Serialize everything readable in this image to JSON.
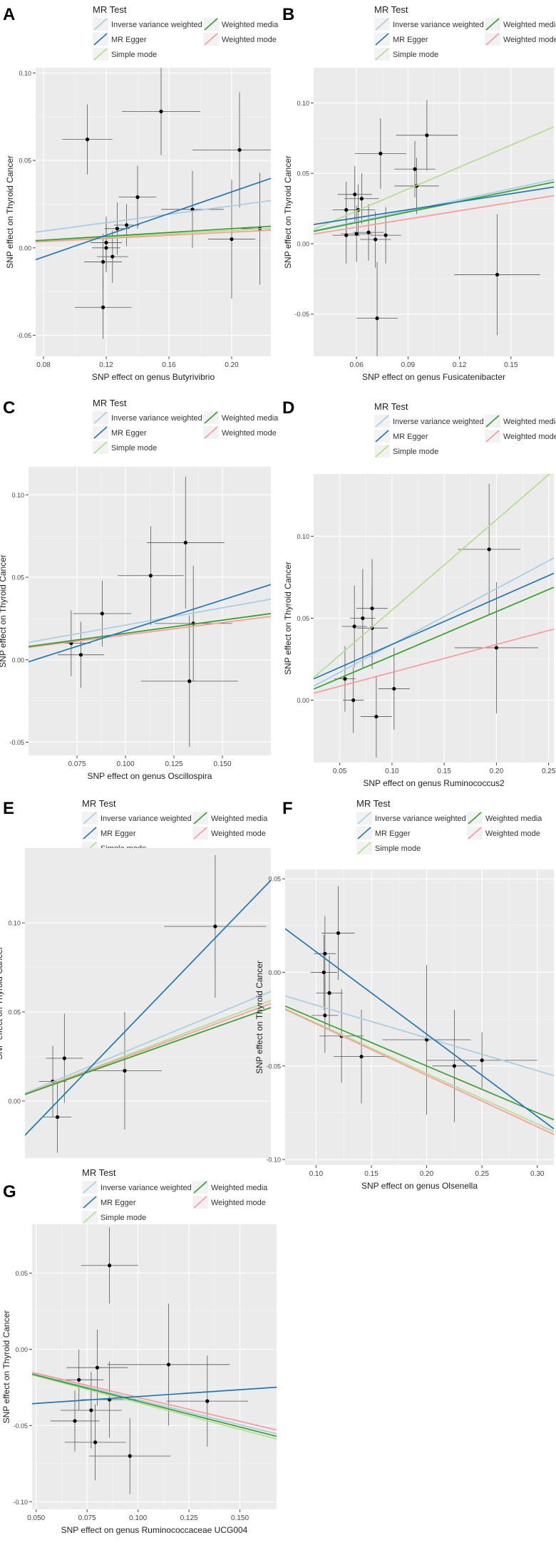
{
  "legend_labels": {
    "title": "MR Test",
    "ivw": "Inverse variance weighted",
    "egger": "MR Egger",
    "simple": "Simple mode",
    "wmedian": "Weighted media",
    "wmode": "Weighted mode"
  },
  "colors": {
    "ivw": "#a6cee3",
    "egger": "#1f78b4",
    "simple": "#b2df8a",
    "wmedian": "#33a02c",
    "wmode": "#fb9a99",
    "panel_bg": "#ebebeb",
    "grid": "#ffffff"
  },
  "chart_data": [
    {
      "panel": "A",
      "type": "scatter",
      "title": "",
      "xlabel": "SNP effect on genus Butyrivibrio",
      "ylabel": "SNP effect on Thyroid Cancer",
      "xlim": [
        0.075,
        0.225
      ],
      "ylim": [
        -0.062,
        0.103
      ],
      "xticks": [
        0.08,
        0.12,
        0.16,
        0.2
      ],
      "xtick_labels": [
        "0.08",
        "0.12",
        "0.16",
        "0.20"
      ],
      "yticks": [
        -0.05,
        0.0,
        0.05,
        0.1
      ],
      "ytick_labels": [
        "-0.05",
        "0.00",
        "0.05",
        "0.10"
      ],
      "points": [
        {
          "x": 0.108,
          "y": 0.062,
          "xerr": 0.016,
          "yerr": 0.02
        },
        {
          "x": 0.155,
          "y": 0.078,
          "xerr": 0.025,
          "yerr": 0.025
        },
        {
          "x": 0.205,
          "y": 0.056,
          "xerr": 0.03,
          "yerr": 0.033
        },
        {
          "x": 0.14,
          "y": 0.029,
          "xerr": 0.012,
          "yerr": 0.018
        },
        {
          "x": 0.133,
          "y": 0.013,
          "xerr": 0.008,
          "yerr": 0.012
        },
        {
          "x": 0.127,
          "y": 0.011,
          "xerr": 0.008,
          "yerr": 0.015
        },
        {
          "x": 0.175,
          "y": 0.022,
          "xerr": 0.02,
          "yerr": 0.022
        },
        {
          "x": 0.12,
          "y": 0.003,
          "xerr": 0.01,
          "yerr": 0.015
        },
        {
          "x": 0.12,
          "y": 0.0,
          "xerr": 0.009,
          "yerr": 0.014
        },
        {
          "x": 0.124,
          "y": -0.005,
          "xerr": 0.01,
          "yerr": 0.015
        },
        {
          "x": 0.118,
          "y": -0.008,
          "xerr": 0.012,
          "yerr": 0.016
        },
        {
          "x": 0.2,
          "y": 0.005,
          "xerr": 0.015,
          "yerr": 0.034
        },
        {
          "x": 0.218,
          "y": 0.011,
          "xerr": 0.012,
          "yerr": 0.032
        },
        {
          "x": 0.118,
          "y": -0.034,
          "xerr": 0.018,
          "yerr": 0.018
        }
      ],
      "lines": [
        {
          "method": "ivw",
          "intercept": 0.0,
          "slope": 0.12
        },
        {
          "method": "egger",
          "intercept": -0.03,
          "slope": 0.31
        },
        {
          "method": "simple",
          "intercept": 0.0,
          "slope": 0.05
        },
        {
          "method": "wmedian",
          "intercept": 0.0,
          "slope": 0.055
        },
        {
          "method": "wmode",
          "intercept": 0.0,
          "slope": 0.045
        }
      ]
    },
    {
      "panel": "B",
      "type": "scatter",
      "title": "",
      "xlabel": "SNP effect on genus Fusicatenibacter",
      "ylabel": "SNP effect on Thyroid Cancer",
      "xlim": [
        0.035,
        0.175
      ],
      "ylim": [
        -0.08,
        0.125
      ],
      "xticks": [
        0.06,
        0.09,
        0.12,
        0.15
      ],
      "xtick_labels": [
        "0.06",
        "0.09",
        "0.12",
        "0.15"
      ],
      "yticks": [
        -0.05,
        0.0,
        0.05,
        0.1
      ],
      "ytick_labels": [
        "-0.05",
        "0.00",
        "0.05",
        "0.10"
      ],
      "points": [
        {
          "x": 0.101,
          "y": 0.077,
          "xerr": 0.018,
          "yerr": 0.025
        },
        {
          "x": 0.074,
          "y": 0.064,
          "xerr": 0.015,
          "yerr": 0.025
        },
        {
          "x": 0.094,
          "y": 0.053,
          "xerr": 0.012,
          "yerr": 0.02
        },
        {
          "x": 0.095,
          "y": 0.041,
          "xerr": 0.013,
          "yerr": 0.02
        },
        {
          "x": 0.059,
          "y": 0.035,
          "xerr": 0.01,
          "yerr": 0.02
        },
        {
          "x": 0.063,
          "y": 0.032,
          "xerr": 0.01,
          "yerr": 0.018
        },
        {
          "x": 0.054,
          "y": 0.024,
          "xerr": 0.008,
          "yerr": 0.02
        },
        {
          "x": 0.061,
          "y": 0.024,
          "xerr": 0.01,
          "yerr": 0.018
        },
        {
          "x": 0.054,
          "y": 0.006,
          "xerr": 0.008,
          "yerr": 0.02
        },
        {
          "x": 0.06,
          "y": 0.007,
          "xerr": 0.009,
          "yerr": 0.02
        },
        {
          "x": 0.067,
          "y": 0.008,
          "xerr": 0.009,
          "yerr": 0.02
        },
        {
          "x": 0.071,
          "y": 0.003,
          "xerr": 0.009,
          "yerr": 0.02
        },
        {
          "x": 0.077,
          "y": 0.006,
          "xerr": 0.009,
          "yerr": 0.02
        },
        {
          "x": 0.142,
          "y": -0.022,
          "xerr": 0.025,
          "yerr": 0.043
        },
        {
          "x": 0.072,
          "y": -0.053,
          "xerr": 0.012,
          "yerr": 0.04
        }
      ],
      "lines": [
        {
          "method": "ivw",
          "intercept": 0.0,
          "slope": 0.26
        },
        {
          "method": "egger",
          "intercept": 0.007,
          "slope": 0.19
        },
        {
          "method": "simple",
          "intercept": -0.008,
          "slope": 0.52
        },
        {
          "method": "wmedian",
          "intercept": 0.0,
          "slope": 0.25
        },
        {
          "method": "wmode",
          "intercept": 0.0,
          "slope": 0.195
        }
      ]
    },
    {
      "panel": "C",
      "type": "scatter",
      "title": "",
      "xlabel": "SNP effect on genus Oscillospira",
      "ylabel": "SNP effect on Thyroid Cancer",
      "xlim": [
        0.05,
        0.175
      ],
      "ylim": [
        -0.058,
        0.117
      ],
      "xticks": [
        0.075,
        0.1,
        0.125,
        0.15
      ],
      "xtick_labels": [
        "0.075",
        "0.100",
        "0.125",
        "0.150"
      ],
      "yticks": [
        -0.05,
        0.0,
        0.05,
        0.1
      ],
      "ytick_labels": [
        "-0.05",
        "0.00",
        "0.05",
        "0.10"
      ],
      "points": [
        {
          "x": 0.131,
          "y": 0.071,
          "xerr": 0.02,
          "yerr": 0.04
        },
        {
          "x": 0.113,
          "y": 0.051,
          "xerr": 0.017,
          "yerr": 0.03
        },
        {
          "x": 0.088,
          "y": 0.028,
          "xerr": 0.015,
          "yerr": 0.02
        },
        {
          "x": 0.135,
          "y": 0.022,
          "xerr": 0.02,
          "yerr": 0.035
        },
        {
          "x": 0.072,
          "y": 0.01,
          "xerr": 0.01,
          "yerr": 0.02
        },
        {
          "x": 0.077,
          "y": 0.003,
          "xerr": 0.012,
          "yerr": 0.02
        },
        {
          "x": 0.133,
          "y": -0.013,
          "xerr": 0.025,
          "yerr": 0.04
        }
      ],
      "lines": [
        {
          "method": "ivw",
          "intercept": 0.0,
          "slope": 0.21
        },
        {
          "method": "egger",
          "intercept": -0.02,
          "slope": 0.375
        },
        {
          "method": "simple",
          "intercept": 0.0,
          "slope": 0.16
        },
        {
          "method": "wmedian",
          "intercept": 0.0,
          "slope": 0.16
        },
        {
          "method": "wmode",
          "intercept": 0.0,
          "slope": 0.15
        }
      ]
    },
    {
      "panel": "D",
      "type": "scatter",
      "title": "",
      "xlabel": "SNP effect on genus Ruminococcus2",
      "ylabel": "SNP effect on Thyroid Cancer",
      "xlim": [
        0.025,
        0.255
      ],
      "ylim": [
        -0.038,
        0.138
      ],
      "xticks": [
        0.05,
        0.1,
        0.15,
        0.2,
        0.25
      ],
      "xtick_labels": [
        "0.05",
        "0.10",
        "0.15",
        "0.20",
        "0.25"
      ],
      "yticks": [
        0.0,
        0.05,
        0.1
      ],
      "ytick_labels": [
        "0.00",
        "0.05",
        "0.10"
      ],
      "points": [
        {
          "x": 0.193,
          "y": 0.092,
          "xerr": 0.03,
          "yerr": 0.04
        },
        {
          "x": 0.081,
          "y": 0.056,
          "xerr": 0.015,
          "yerr": 0.03
        },
        {
          "x": 0.072,
          "y": 0.05,
          "xerr": 0.012,
          "yerr": 0.03
        },
        {
          "x": 0.064,
          "y": 0.045,
          "xerr": 0.012,
          "yerr": 0.025
        },
        {
          "x": 0.081,
          "y": 0.044,
          "xerr": 0.015,
          "yerr": 0.025
        },
        {
          "x": 0.2,
          "y": 0.032,
          "xerr": 0.04,
          "yerr": 0.04
        },
        {
          "x": 0.055,
          "y": 0.013,
          "xerr": 0.01,
          "yerr": 0.02
        },
        {
          "x": 0.102,
          "y": 0.007,
          "xerr": 0.015,
          "yerr": 0.025
        },
        {
          "x": 0.063,
          "y": 0.0,
          "xerr": 0.01,
          "yerr": 0.02
        },
        {
          "x": 0.085,
          "y": -0.01,
          "xerr": 0.015,
          "yerr": 0.025
        }
      ],
      "lines": [
        {
          "method": "ivw",
          "intercept": 0.0,
          "slope": 0.34
        },
        {
          "method": "egger",
          "intercept": 0.006,
          "slope": 0.28
        },
        {
          "method": "simple",
          "intercept": 0.0,
          "slope": 0.55
        },
        {
          "method": "wmedian",
          "intercept": 0.0,
          "slope": 0.27
        },
        {
          "method": "wmode",
          "intercept": 0.0,
          "slope": 0.17
        }
      ]
    },
    {
      "panel": "E",
      "type": "scatter",
      "title": "",
      "xlabel": "",
      "ylabel": "SNP effect on Thyroid Cancer",
      "xlim": [
        0.04,
        0.57
      ],
      "ylim": [
        -0.032,
        0.142
      ],
      "xticks": [],
      "xtick_labels": [],
      "yticks": [
        0.0,
        0.05,
        0.1
      ],
      "ytick_labels": [
        "0.00",
        "0.05",
        "0.10"
      ],
      "points": [
        {
          "x": 0.45,
          "y": 0.098,
          "xerr": 0.11,
          "yerr": 0.04
        },
        {
          "x": 0.125,
          "y": 0.024,
          "xerr": 0.04,
          "yerr": 0.025
        },
        {
          "x": 0.255,
          "y": 0.017,
          "xerr": 0.08,
          "yerr": 0.033
        },
        {
          "x": 0.1,
          "y": 0.011,
          "xerr": 0.03,
          "yerr": 0.02
        },
        {
          "x": 0.11,
          "y": -0.009,
          "xerr": 0.03,
          "yerr": 0.02
        }
      ],
      "lines": [
        {
          "method": "ivw",
          "intercept": 0.0,
          "slope": 0.108
        },
        {
          "method": "egger",
          "intercept": -0.03,
          "slope": 0.27
        },
        {
          "method": "simple",
          "intercept": 0.0,
          "slope": 0.099
        },
        {
          "method": "wmedian",
          "intercept": 0.0,
          "slope": 0.092
        },
        {
          "method": "wmode",
          "intercept": 0.0,
          "slope": 0.096
        }
      ]
    },
    {
      "panel": "F",
      "type": "scatter",
      "title": "",
      "xlabel": "SNP effect on genus Olsenella",
      "ylabel": "SNP effect on Thyroid Cancer",
      "xlim": [
        0.072,
        0.315
      ],
      "ylim": [
        -0.103,
        0.055
      ],
      "xticks": [
        0.1,
        0.15,
        0.2,
        0.25,
        0.3
      ],
      "xtick_labels": [
        "0.10",
        "0.15",
        "0.20",
        "0.25",
        "0.30"
      ],
      "yticks": [
        -0.1,
        -0.05,
        0.0,
        0.05
      ],
      "ytick_labels": [
        "-0.10",
        "-0.05",
        "0.00",
        "0.05"
      ],
      "points": [
        {
          "x": 0.12,
          "y": 0.021,
          "xerr": 0.015,
          "yerr": 0.025
        },
        {
          "x": 0.108,
          "y": 0.01,
          "xerr": 0.01,
          "yerr": 0.02
        },
        {
          "x": 0.107,
          "y": 0.0,
          "xerr": 0.012,
          "yerr": 0.02
        },
        {
          "x": 0.112,
          "y": -0.011,
          "xerr": 0.012,
          "yerr": 0.02
        },
        {
          "x": 0.108,
          "y": -0.023,
          "xerr": 0.012,
          "yerr": 0.02
        },
        {
          "x": 0.123,
          "y": -0.034,
          "xerr": 0.02,
          "yerr": 0.025
        },
        {
          "x": 0.2,
          "y": -0.036,
          "xerr": 0.04,
          "yerr": 0.04
        },
        {
          "x": 0.141,
          "y": -0.045,
          "xerr": 0.025,
          "yerr": 0.025
        },
        {
          "x": 0.25,
          "y": -0.047,
          "xerr": 0.05,
          "yerr": 0.015
        },
        {
          "x": 0.225,
          "y": -0.05,
          "xerr": 0.02,
          "yerr": 0.03
        }
      ],
      "lines": [
        {
          "method": "ivw",
          "intercept": 0.0,
          "slope": -0.175
        },
        {
          "method": "egger",
          "intercept": 0.055,
          "slope": -0.44
        },
        {
          "method": "simple",
          "intercept": 0.0,
          "slope": -0.27
        },
        {
          "method": "wmedian",
          "intercept": 0.0,
          "slope": -0.25
        },
        {
          "method": "wmode",
          "intercept": 0.0,
          "slope": -0.275
        }
      ]
    },
    {
      "panel": "G",
      "type": "scatter",
      "title": "",
      "xlabel": "SNP effect on genus Ruminococcaceae UCG004",
      "ylabel": "SNP effect on Thyroid Cancer",
      "xlim": [
        0.048,
        0.168
      ],
      "ylim": [
        -0.105,
        0.082
      ],
      "xticks": [
        0.05,
        0.075,
        0.1,
        0.125,
        0.15
      ],
      "xtick_labels": [
        "0.050",
        "0.075",
        "0.100",
        "0.125",
        "0.150"
      ],
      "yticks": [
        -0.1,
        -0.05,
        0.0,
        0.05
      ],
      "ytick_labels": [
        "-0.10",
        "-0.05",
        "0.00",
        "0.05"
      ],
      "points": [
        {
          "x": 0.086,
          "y": 0.055,
          "xerr": 0.014,
          "yerr": 0.025
        },
        {
          "x": 0.115,
          "y": -0.01,
          "xerr": 0.03,
          "yerr": 0.04
        },
        {
          "x": 0.08,
          "y": -0.012,
          "xerr": 0.015,
          "yerr": 0.025
        },
        {
          "x": 0.071,
          "y": -0.02,
          "xerr": 0.012,
          "yerr": 0.02
        },
        {
          "x": 0.086,
          "y": -0.033,
          "xerr": 0.014,
          "yerr": 0.025
        },
        {
          "x": 0.134,
          "y": -0.034,
          "xerr": 0.02,
          "yerr": 0.03
        },
        {
          "x": 0.077,
          "y": -0.04,
          "xerr": 0.015,
          "yerr": 0.025
        },
        {
          "x": 0.069,
          "y": -0.047,
          "xerr": 0.012,
          "yerr": 0.02
        },
        {
          "x": 0.079,
          "y": -0.061,
          "xerr": 0.015,
          "yerr": 0.025
        },
        {
          "x": 0.096,
          "y": -0.07,
          "xerr": 0.02,
          "yerr": 0.025
        }
      ],
      "lines": [
        {
          "method": "ivw",
          "intercept": 0.0,
          "slope": -0.33
        },
        {
          "method": "egger",
          "intercept": -0.04,
          "slope": 0.09
        },
        {
          "method": "simple",
          "intercept": 0.0,
          "slope": -0.35
        },
        {
          "method": "wmedian",
          "intercept": 0.0,
          "slope": -0.34
        },
        {
          "method": "wmode",
          "intercept": 0.0,
          "slope": -0.315
        }
      ]
    }
  ]
}
